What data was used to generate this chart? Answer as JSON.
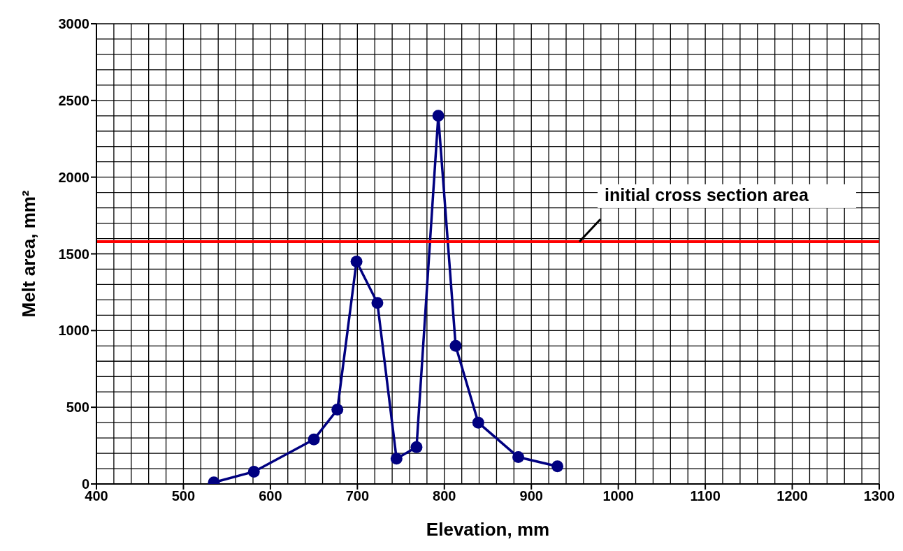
{
  "chart_data": {
    "type": "line",
    "xlabel": "Elevation, mm",
    "ylabel": "Melt area, mm²",
    "x": [
      535,
      581,
      650,
      677,
      699,
      723,
      745,
      768,
      793,
      813,
      839,
      885,
      930
    ],
    "series": [
      {
        "color": "#000080",
        "values": [
          10,
          80,
          290,
          485,
          1450,
          1180,
          165,
          240,
          2400,
          900,
          400,
          175,
          115
        ]
      }
    ],
    "xlim": [
      400,
      1300
    ],
    "xticks": [
      400,
      500,
      600,
      700,
      800,
      900,
      1000,
      1100,
      1200,
      1300
    ],
    "ylim": [
      0,
      3000
    ],
    "yticks": [
      0,
      500,
      1000,
      1500,
      2000,
      2500,
      3000
    ],
    "grid": true,
    "marker": "circle",
    "line_style": "solid",
    "ref_lines": [
      {
        "axis": "y",
        "value": 1580,
        "label": "initial cross section area",
        "color": "#ff0000"
      }
    ]
  }
}
